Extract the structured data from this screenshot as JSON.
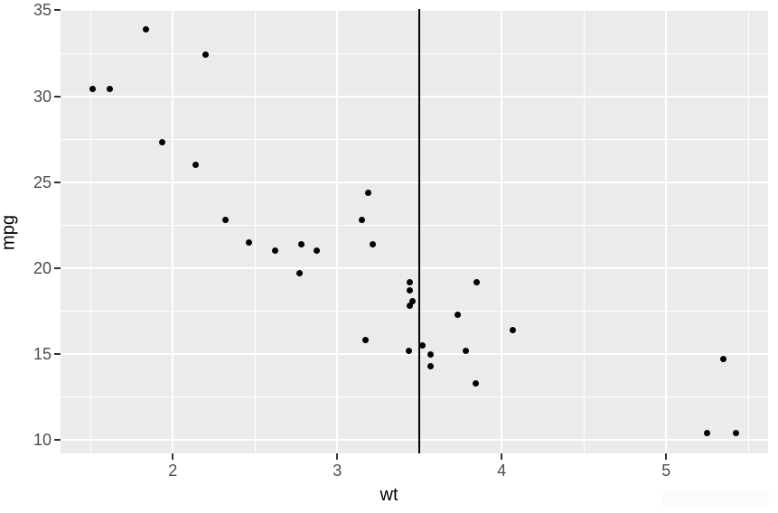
{
  "chart_data": {
    "type": "scatter",
    "title": "",
    "xlabel": "wt",
    "ylabel": "mpg",
    "x_ticks": [
      2,
      3,
      4,
      5
    ],
    "y_ticks": [
      10,
      15,
      20,
      25,
      30,
      35
    ],
    "x_minor_ticks": [
      1.5,
      2.5,
      3.5,
      4.5,
      5.5
    ],
    "y_minor_ticks": [
      12.5,
      17.5,
      22.5,
      27.5,
      32.5
    ],
    "xlim": [
      1.31745,
      5.61955
    ],
    "ylim": [
      9.225,
      35.075
    ],
    "grid": true,
    "legend": "none",
    "vline_x": 3.5,
    "points": [
      {
        "wt": 2.62,
        "mpg": 21.0
      },
      {
        "wt": 2.875,
        "mpg": 21.0
      },
      {
        "wt": 2.32,
        "mpg": 22.8
      },
      {
        "wt": 3.215,
        "mpg": 21.4
      },
      {
        "wt": 3.44,
        "mpg": 18.7
      },
      {
        "wt": 3.46,
        "mpg": 18.1
      },
      {
        "wt": 3.57,
        "mpg": 14.3
      },
      {
        "wt": 3.19,
        "mpg": 24.4
      },
      {
        "wt": 3.15,
        "mpg": 22.8
      },
      {
        "wt": 3.44,
        "mpg": 19.2
      },
      {
        "wt": 3.44,
        "mpg": 17.8
      },
      {
        "wt": 4.07,
        "mpg": 16.4
      },
      {
        "wt": 3.73,
        "mpg": 17.3
      },
      {
        "wt": 3.78,
        "mpg": 15.2
      },
      {
        "wt": 5.25,
        "mpg": 10.4
      },
      {
        "wt": 5.424,
        "mpg": 10.4
      },
      {
        "wt": 5.345,
        "mpg": 14.7
      },
      {
        "wt": 2.2,
        "mpg": 32.4
      },
      {
        "wt": 1.615,
        "mpg": 30.4
      },
      {
        "wt": 1.835,
        "mpg": 33.9
      },
      {
        "wt": 2.465,
        "mpg": 21.5
      },
      {
        "wt": 3.52,
        "mpg": 15.5
      },
      {
        "wt": 3.435,
        "mpg": 15.2
      },
      {
        "wt": 3.84,
        "mpg": 13.3
      },
      {
        "wt": 3.845,
        "mpg": 19.2
      },
      {
        "wt": 1.935,
        "mpg": 27.3
      },
      {
        "wt": 2.14,
        "mpg": 26.0
      },
      {
        "wt": 1.513,
        "mpg": 30.4
      },
      {
        "wt": 3.17,
        "mpg": 15.8
      },
      {
        "wt": 2.77,
        "mpg": 19.7
      },
      {
        "wt": 3.57,
        "mpg": 15.0
      },
      {
        "wt": 2.78,
        "mpg": 21.4
      }
    ],
    "colors": {
      "page_bg": "#ffffff",
      "panel_bg": "#ebebeb",
      "grid_major": "#ffffff",
      "grid_minor": "#ffffff",
      "point": "#000000",
      "vline": "#000000",
      "tick_mark": "#333333",
      "tick_label": "#4d4d4d",
      "axis_title": "#000000",
      "artifact_bg": "#fbfbfb"
    }
  }
}
